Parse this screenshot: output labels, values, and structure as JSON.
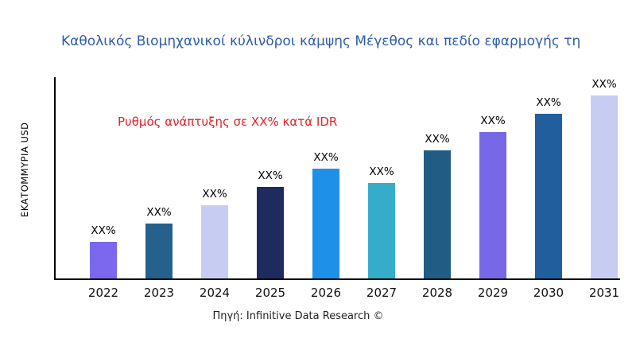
{
  "title": "Καθολικός Βιομηχανικοί κύλινδροι κάμψης Μέγεθος και πεδίο εφαρμογής τη",
  "y_axis_label": "ΕΚΑΤΟΜΜΥΡΙΑ USD",
  "annotation": "Ρυθμός ανάπτυξης σε XX% κατά IDR",
  "source": "Πηγή: Infinitive Data Research ©",
  "colors": {
    "title_text": "#2e5ca8",
    "annotation_text": "#e22128",
    "axis": "#000000",
    "background": "#ffffff"
  },
  "chart_data": {
    "type": "bar",
    "title": "Καθολικός Βιομηχανικοί κύλινδροι κάμψης Μέγεθος και πεδίο εφαρμογής τη",
    "xlabel": "",
    "ylabel": "ΕΚΑΤΟΜΜΥΡΙΑ USD",
    "categories": [
      "2022",
      "2023",
      "2024",
      "2025",
      "2026",
      "2027",
      "2028",
      "2029",
      "2030",
      "2031"
    ],
    "values": [
      20,
      30,
      40,
      50,
      60,
      52,
      70,
      80,
      90,
      100
    ],
    "bar_labels": [
      "XX%",
      "XX%",
      "XX%",
      "XX%",
      "XX%",
      "XX%",
      "XX%",
      "XX%",
      "XX%",
      "XX%"
    ],
    "bar_colors": [
      "#7b68ee",
      "#25618c",
      "#c7cdf2",
      "#1d2b5e",
      "#1e90e8",
      "#36accb",
      "#215c85",
      "#7668e6",
      "#215e9e",
      "#c7cdf2"
    ],
    "ylim": [
      0,
      110
    ],
    "grid": false,
    "legend": false,
    "annotation": "Ρυθμός ανάπτυξης σε XX% κατά IDR",
    "source": "Πηγή: Infinitive Data Research ©"
  }
}
